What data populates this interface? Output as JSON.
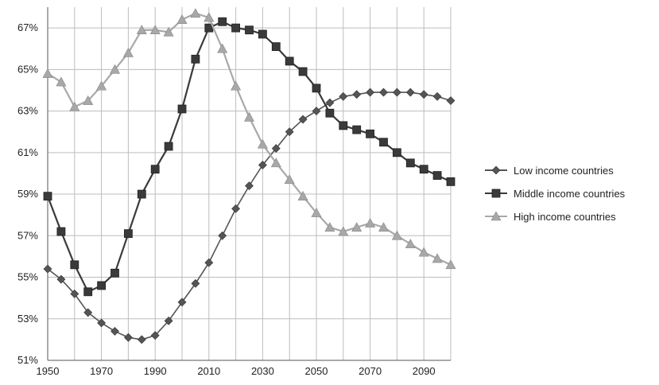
{
  "chart_data": {
    "type": "line",
    "title": "",
    "xlabel": "",
    "ylabel": "",
    "xlim": [
      1950,
      2100
    ],
    "ylim": [
      51,
      68
    ],
    "x_ticks": [
      "1950",
      "1970",
      "1990",
      "2010",
      "2030",
      "2050",
      "2070",
      "2090"
    ],
    "y_ticks": [
      "51%",
      "53%",
      "55%",
      "57%",
      "59%",
      "61%",
      "63%",
      "65%",
      "67%"
    ],
    "grid": true,
    "legend_position": "right",
    "x": [
      1950,
      1955,
      1960,
      1965,
      1970,
      1975,
      1980,
      1985,
      1990,
      1995,
      2000,
      2005,
      2010,
      2015,
      2020,
      2025,
      2030,
      2035,
      2040,
      2045,
      2050,
      2055,
      2060,
      2065,
      2070,
      2075,
      2080,
      2085,
      2090,
      2095,
      2100
    ],
    "series": [
      {
        "name": "Low income countries",
        "marker": "diamond",
        "color": "#555555",
        "values": [
          55.4,
          54.9,
          54.2,
          53.3,
          52.8,
          52.4,
          52.1,
          52.0,
          52.2,
          52.9,
          53.8,
          54.7,
          55.7,
          57.0,
          58.3,
          59.4,
          60.4,
          61.2,
          62.0,
          62.6,
          63.0,
          63.4,
          63.7,
          63.8,
          63.9,
          63.9,
          63.9,
          63.9,
          63.8,
          63.7,
          63.5
        ]
      },
      {
        "name": "Middle income countries",
        "marker": "square",
        "color": "#3a3a3a",
        "values": [
          58.9,
          57.2,
          55.6,
          54.3,
          54.6,
          55.2,
          57.1,
          59.0,
          60.2,
          61.3,
          63.1,
          65.5,
          67.0,
          67.3,
          67.0,
          66.9,
          66.7,
          66.1,
          65.4,
          64.9,
          64.1,
          62.9,
          62.3,
          62.1,
          61.9,
          61.5,
          61.0,
          60.5,
          60.2,
          59.9,
          59.6
        ]
      },
      {
        "name": "High income countries",
        "marker": "triangle",
        "color": "#a8a8a8",
        "values": [
          64.8,
          64.4,
          63.2,
          63.5,
          64.2,
          65.0,
          65.8,
          66.9,
          66.9,
          66.8,
          67.4,
          67.7,
          67.5,
          66.0,
          64.2,
          62.7,
          61.4,
          60.5,
          59.7,
          58.9,
          58.1,
          57.4,
          57.2,
          57.4,
          57.6,
          57.4,
          57.0,
          56.6,
          56.2,
          55.9,
          55.6
        ]
      }
    ]
  }
}
